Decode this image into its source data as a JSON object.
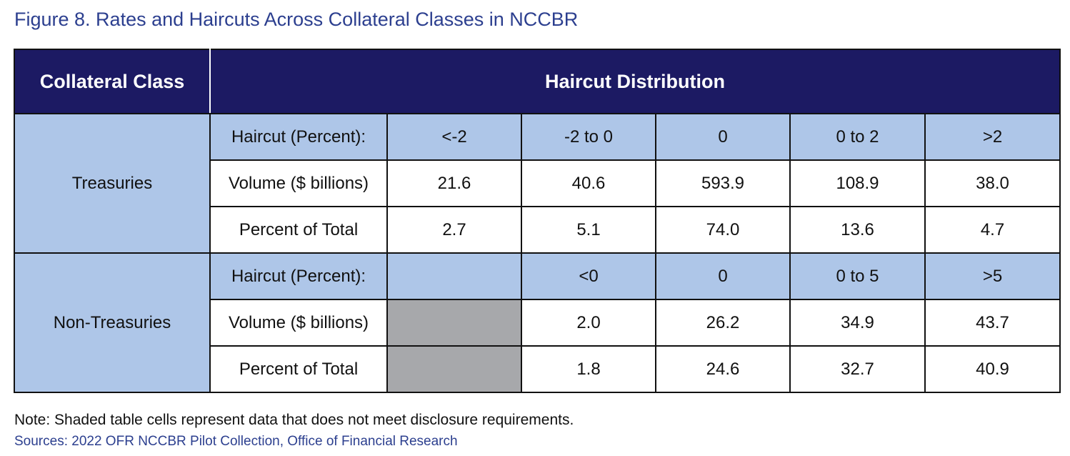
{
  "figure": {
    "title": "Figure 8.  Rates and Haircuts Across Collateral Classes in NCCBR",
    "note": "Note:  Shaded table cells represent data that does not meet disclosure requirements.",
    "sources": "Sources:  2022 OFR NCCBR Pilot Collection, Office of Financial Research"
  },
  "table": {
    "header": {
      "collateral_class": "Collateral Class",
      "haircut_distribution": "Haircut Distribution"
    },
    "shaded_color": "#a7a8ab",
    "header_color": "#1c1a63",
    "band_color": "#aec6e8",
    "groups": [
      {
        "name": "Treasuries",
        "rows": [
          {
            "label": "Haircut (Percent):",
            "cells": [
              "<-2",
              "-2 to 0",
              "0",
              "0 to 2",
              ">2"
            ]
          },
          {
            "label": "Volume ($ billions)",
            "cells": [
              "21.6",
              "40.6",
              "593.9",
              "108.9",
              "38.0"
            ]
          },
          {
            "label": "Percent of Total",
            "cells": [
              "2.7",
              "5.1",
              "74.0",
              "13.6",
              "4.7"
            ]
          }
        ]
      },
      {
        "name": "Non-Treasuries",
        "rows": [
          {
            "label": "Haircut (Percent):",
            "cells": [
              "",
              "<0",
              "0",
              "0 to 5",
              ">5"
            ]
          },
          {
            "label": "Volume ($ billions)",
            "cells": [
              "",
              "2.0",
              "26.2",
              "34.9",
              "43.7"
            ]
          },
          {
            "label": "Percent of Total",
            "cells": [
              "",
              "1.8",
              "24.6",
              "32.7",
              "40.9"
            ]
          }
        ]
      }
    ]
  }
}
